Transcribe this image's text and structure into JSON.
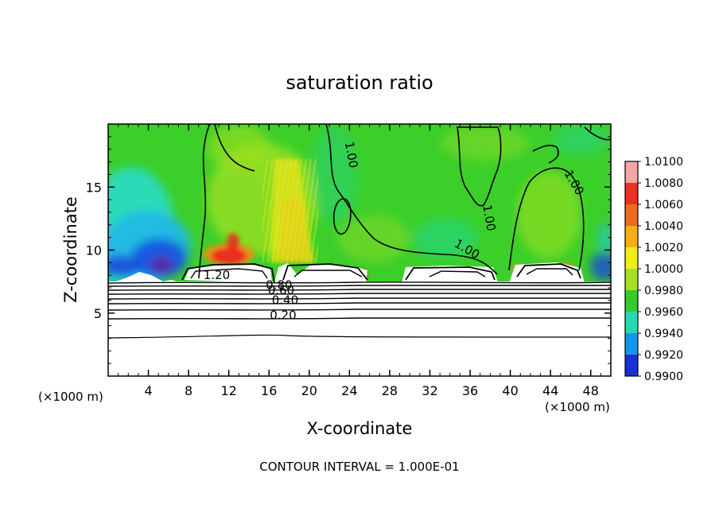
{
  "chart_data": {
    "type": "heatmap",
    "title": "saturation ratio",
    "xlabel": "X-coordinate",
    "ylabel": "Z-coordinate",
    "x_unit": "(×1000 m)",
    "x_unit_right": "(×1000 m)",
    "xlim": [
      0,
      50
    ],
    "ylim": [
      0,
      20
    ],
    "x_ticks": [
      4,
      8,
      12,
      16,
      20,
      24,
      28,
      32,
      36,
      40,
      44,
      48
    ],
    "y_ticks": [
      5,
      10,
      15
    ],
    "colorbar": {
      "labels": [
        "1.0100",
        "1.0080",
        "1.0060",
        "1.0040",
        "1.0020",
        "1.0000",
        "0.9980",
        "0.9960",
        "0.9940",
        "0.9920",
        "0.9900"
      ],
      "colors": [
        "#f4a6a6",
        "#ee2e20",
        "#f06a1a",
        "#f7b010",
        "#f2ec18",
        "#a6e020",
        "#34cc28",
        "#20dcb0",
        "#1098f0",
        "#1830d8",
        "#5020a0"
      ]
    },
    "contour_labels": [
      {
        "text": "1.00",
        "x": 23.8,
        "z": 17.5,
        "rot": 80
      },
      {
        "text": "1.00",
        "x": 37.5,
        "z": 12.5,
        "rot": 80
      },
      {
        "text": "1.00",
        "x": 46.0,
        "z": 15.2,
        "rot": 60
      },
      {
        "text": "1.00",
        "x": 35.5,
        "z": 9.8,
        "rot": 30
      },
      {
        "text": "1.20",
        "x": 10.8,
        "z": 7.7,
        "rot": 0
      },
      {
        "text": "0.80",
        "x": 17.0,
        "z": 6.9,
        "rot": 0
      },
      {
        "text": "0.60",
        "x": 17.2,
        "z": 6.5,
        "rot": 0
      },
      {
        "text": "0.40",
        "x": 17.6,
        "z": 5.7,
        "rot": 0
      },
      {
        "text": "0.20",
        "x": 17.4,
        "z": 4.5,
        "rot": 0
      }
    ],
    "note": "CONTOUR INTERVAL = 1.000E-01"
  }
}
